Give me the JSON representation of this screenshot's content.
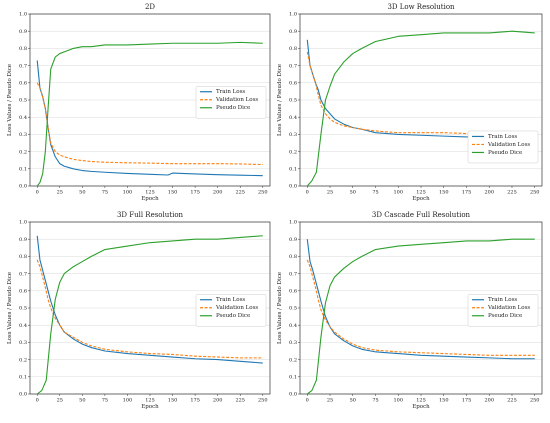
{
  "chart_data": [
    {
      "type": "line",
      "title": "2D",
      "xlabel": "Epoch",
      "ylabel": "Loss Values / Pseudo Dice",
      "xlim": [
        -8,
        258
      ],
      "ylim": [
        0,
        1.0
      ],
      "xticks": [
        0,
        25,
        50,
        75,
        100,
        125,
        150,
        175,
        200,
        225,
        250
      ],
      "yticks": [
        0,
        0.1,
        0.2,
        0.3,
        0.4,
        0.5,
        0.6,
        0.7,
        0.8,
        0.9,
        1.0
      ],
      "grid": "y",
      "legend": "center-right",
      "series": [
        {
          "name": "Train Loss",
          "color": "#1f77b4",
          "dash": "solid",
          "x": [
            0,
            3,
            6,
            9,
            12,
            15,
            20,
            25,
            30,
            40,
            50,
            60,
            75,
            100,
            125,
            145,
            150,
            175,
            200,
            225,
            250
          ],
          "y": [
            0.73,
            0.57,
            0.52,
            0.45,
            0.34,
            0.24,
            0.17,
            0.13,
            0.115,
            0.1,
            0.09,
            0.085,
            0.08,
            0.073,
            0.068,
            0.064,
            0.075,
            0.07,
            0.066,
            0.063,
            0.06
          ]
        },
        {
          "name": "Validation Loss",
          "color": "#ff7f0e",
          "dash": "dashed",
          "x": [
            0,
            3,
            6,
            9,
            12,
            15,
            20,
            25,
            30,
            40,
            50,
            60,
            75,
            100,
            125,
            150,
            175,
            200,
            225,
            250
          ],
          "y": [
            0.6,
            0.57,
            0.52,
            0.45,
            0.34,
            0.25,
            0.2,
            0.18,
            0.17,
            0.155,
            0.148,
            0.142,
            0.138,
            0.135,
            0.133,
            0.13,
            0.13,
            0.13,
            0.128,
            0.125
          ]
        },
        {
          "name": "Pseudo Dice",
          "color": "#2ca02c",
          "dash": "solid",
          "x": [
            0,
            3,
            6,
            9,
            12,
            15,
            20,
            25,
            30,
            40,
            50,
            60,
            75,
            100,
            125,
            150,
            175,
            200,
            225,
            250
          ],
          "y": [
            0.0,
            0.02,
            0.07,
            0.2,
            0.45,
            0.68,
            0.75,
            0.77,
            0.78,
            0.8,
            0.81,
            0.81,
            0.82,
            0.82,
            0.825,
            0.83,
            0.83,
            0.83,
            0.835,
            0.83
          ]
        }
      ]
    },
    {
      "type": "line",
      "title": "3D Low Resolution",
      "xlabel": "Epoch",
      "ylabel": "Loss Values / Pseudo Dice",
      "xlim": [
        -8,
        258
      ],
      "ylim": [
        0,
        1.0
      ],
      "xticks": [
        0,
        25,
        50,
        75,
        100,
        125,
        150,
        175,
        200,
        225,
        250
      ],
      "yticks": [
        0,
        0.1,
        0.2,
        0.3,
        0.4,
        0.5,
        0.6,
        0.7,
        0.8,
        0.9,
        1.0
      ],
      "grid": "y",
      "legend": "lower-right",
      "series": [
        {
          "name": "Train Loss",
          "color": "#1f77b4",
          "dash": "solid",
          "x": [
            0,
            3,
            6,
            9,
            12,
            15,
            20,
            25,
            30,
            40,
            50,
            60,
            75,
            100,
            125,
            150,
            175,
            200,
            225,
            250
          ],
          "y": [
            0.85,
            0.7,
            0.65,
            0.6,
            0.56,
            0.5,
            0.45,
            0.42,
            0.39,
            0.36,
            0.34,
            0.33,
            0.31,
            0.3,
            0.295,
            0.29,
            0.285,
            0.285,
            0.283,
            0.285
          ]
        },
        {
          "name": "Validation Loss",
          "color": "#ff7f0e",
          "dash": "dashed",
          "x": [
            0,
            3,
            6,
            9,
            12,
            15,
            20,
            25,
            30,
            40,
            50,
            60,
            75,
            100,
            125,
            150,
            175,
            200,
            225,
            250
          ],
          "y": [
            0.78,
            0.7,
            0.65,
            0.6,
            0.53,
            0.47,
            0.42,
            0.39,
            0.37,
            0.35,
            0.34,
            0.33,
            0.32,
            0.31,
            0.31,
            0.31,
            0.305,
            0.3,
            0.3,
            0.3
          ]
        },
        {
          "name": "Pseudo Dice",
          "color": "#2ca02c",
          "dash": "solid",
          "x": [
            0,
            5,
            10,
            15,
            20,
            25,
            30,
            40,
            50,
            60,
            75,
            100,
            125,
            150,
            175,
            200,
            225,
            250
          ],
          "y": [
            0.0,
            0.03,
            0.08,
            0.3,
            0.5,
            0.58,
            0.65,
            0.72,
            0.77,
            0.8,
            0.84,
            0.87,
            0.88,
            0.89,
            0.89,
            0.89,
            0.9,
            0.89
          ]
        }
      ]
    },
    {
      "type": "line",
      "title": "3D Full Resolution",
      "xlabel": "Epoch",
      "ylabel": "Loss Values / Pseudo Dice",
      "xlim": [
        -8,
        258
      ],
      "ylim": [
        0,
        1.0
      ],
      "xticks": [
        0,
        25,
        50,
        75,
        100,
        125,
        150,
        175,
        200,
        225,
        250
      ],
      "yticks": [
        0,
        0.1,
        0.2,
        0.3,
        0.4,
        0.5,
        0.6,
        0.7,
        0.8,
        0.9,
        1.0
      ],
      "grid": "y",
      "legend": "center-right",
      "series": [
        {
          "name": "Train Loss",
          "color": "#1f77b4",
          "dash": "solid",
          "x": [
            0,
            3,
            6,
            9,
            12,
            15,
            20,
            25,
            30,
            40,
            50,
            60,
            75,
            100,
            125,
            150,
            175,
            200,
            225,
            250
          ],
          "y": [
            0.92,
            0.78,
            0.72,
            0.66,
            0.6,
            0.54,
            0.46,
            0.4,
            0.36,
            0.32,
            0.29,
            0.27,
            0.25,
            0.235,
            0.225,
            0.215,
            0.205,
            0.2,
            0.19,
            0.18
          ]
        },
        {
          "name": "Validation Loss",
          "color": "#ff7f0e",
          "dash": "dashed",
          "x": [
            0,
            3,
            6,
            9,
            12,
            15,
            20,
            25,
            30,
            40,
            50,
            60,
            75,
            100,
            125,
            150,
            175,
            200,
            225,
            250
          ],
          "y": [
            0.78,
            0.74,
            0.68,
            0.62,
            0.55,
            0.5,
            0.44,
            0.4,
            0.36,
            0.33,
            0.3,
            0.28,
            0.26,
            0.245,
            0.235,
            0.23,
            0.22,
            0.215,
            0.21,
            0.21
          ]
        },
        {
          "name": "Pseudo Dice",
          "color": "#2ca02c",
          "dash": "solid",
          "x": [
            0,
            5,
            10,
            15,
            20,
            25,
            30,
            40,
            50,
            60,
            75,
            100,
            125,
            150,
            175,
            200,
            225,
            250
          ],
          "y": [
            0.0,
            0.02,
            0.08,
            0.35,
            0.55,
            0.65,
            0.7,
            0.74,
            0.77,
            0.8,
            0.84,
            0.86,
            0.88,
            0.89,
            0.9,
            0.9,
            0.91,
            0.92
          ]
        }
      ]
    },
    {
      "type": "line",
      "title": "3D Cascade Full Resolution",
      "xlabel": "Epoch",
      "ylabel": "Loss Values / Pseudo Dice",
      "xlim": [
        -8,
        258
      ],
      "ylim": [
        0,
        1.0
      ],
      "xticks": [
        0,
        25,
        50,
        75,
        100,
        125,
        150,
        175,
        200,
        225,
        250
      ],
      "yticks": [
        0,
        0.1,
        0.2,
        0.3,
        0.4,
        0.5,
        0.6,
        0.7,
        0.8,
        0.9,
        1.0
      ],
      "grid": "y",
      "legend": "center-right",
      "series": [
        {
          "name": "Train Loss",
          "color": "#1f77b4",
          "dash": "solid",
          "x": [
            0,
            3,
            6,
            9,
            12,
            15,
            20,
            25,
            30,
            40,
            50,
            60,
            75,
            100,
            125,
            150,
            175,
            200,
            225,
            250
          ],
          "y": [
            0.9,
            0.77,
            0.72,
            0.66,
            0.6,
            0.54,
            0.45,
            0.39,
            0.35,
            0.31,
            0.28,
            0.26,
            0.245,
            0.235,
            0.225,
            0.22,
            0.215,
            0.21,
            0.205,
            0.205
          ]
        },
        {
          "name": "Validation Loss",
          "color": "#ff7f0e",
          "dash": "dashed",
          "x": [
            0,
            3,
            6,
            9,
            12,
            15,
            20,
            25,
            30,
            40,
            50,
            60,
            75,
            100,
            125,
            150,
            175,
            200,
            225,
            250
          ],
          "y": [
            0.78,
            0.74,
            0.68,
            0.62,
            0.55,
            0.49,
            0.43,
            0.39,
            0.36,
            0.32,
            0.29,
            0.27,
            0.255,
            0.245,
            0.24,
            0.235,
            0.23,
            0.225,
            0.225,
            0.225
          ]
        },
        {
          "name": "Pseudo Dice",
          "color": "#2ca02c",
          "dash": "solid",
          "x": [
            0,
            5,
            10,
            15,
            20,
            25,
            30,
            40,
            50,
            60,
            75,
            100,
            125,
            150,
            175,
            200,
            225,
            250
          ],
          "y": [
            0.0,
            0.02,
            0.08,
            0.33,
            0.53,
            0.63,
            0.68,
            0.73,
            0.77,
            0.8,
            0.84,
            0.86,
            0.87,
            0.88,
            0.89,
            0.89,
            0.9,
            0.9
          ]
        }
      ]
    }
  ]
}
